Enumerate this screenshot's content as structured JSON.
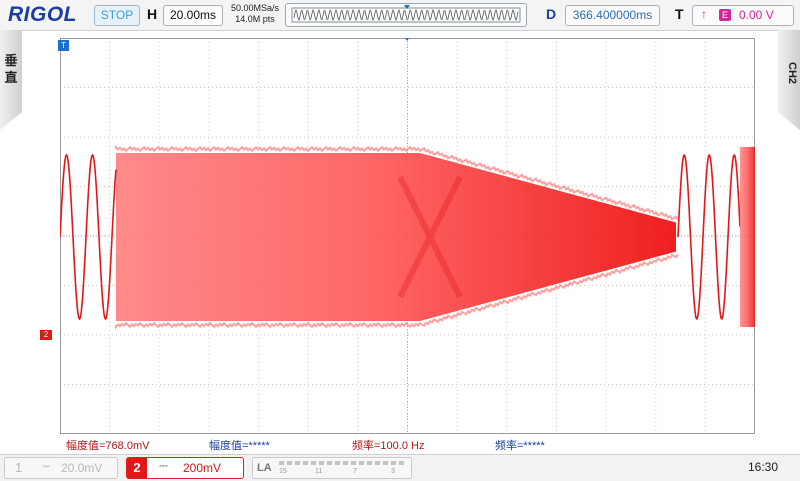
{
  "header": {
    "logo": "RIGOL",
    "run_status": "STOP",
    "timebase_label": "H",
    "timebase_value": "20.00ms",
    "sample_rate": "50.00MSa/s",
    "memory_depth": "14.0M pts",
    "delay_label": "D",
    "delay_value": "366.400000ms",
    "trigger_label": "T",
    "trigger_source": "E",
    "trigger_level": "0.00 V"
  },
  "side": {
    "left_tab": "垂直",
    "right_tab": "CH2"
  },
  "screen": {
    "trigger_marker": "T",
    "channel_marker": "2",
    "channel_color": "#e01818",
    "grid_color": "#c8c8c8"
  },
  "measurements": {
    "m1": "幅度值=768.0mV",
    "m2": "幅度值=*****",
    "m3": "频率=100.0 Hz",
    "m4": "频率=*****"
  },
  "footer": {
    "ch1_number": "1",
    "ch1_scale": "20.0mV",
    "ch2_number": "2",
    "ch2_scale": "200mV",
    "la_label": "LA",
    "la_digits": [
      "15",
      "11",
      "7",
      "3"
    ],
    "time": "16:30"
  }
}
